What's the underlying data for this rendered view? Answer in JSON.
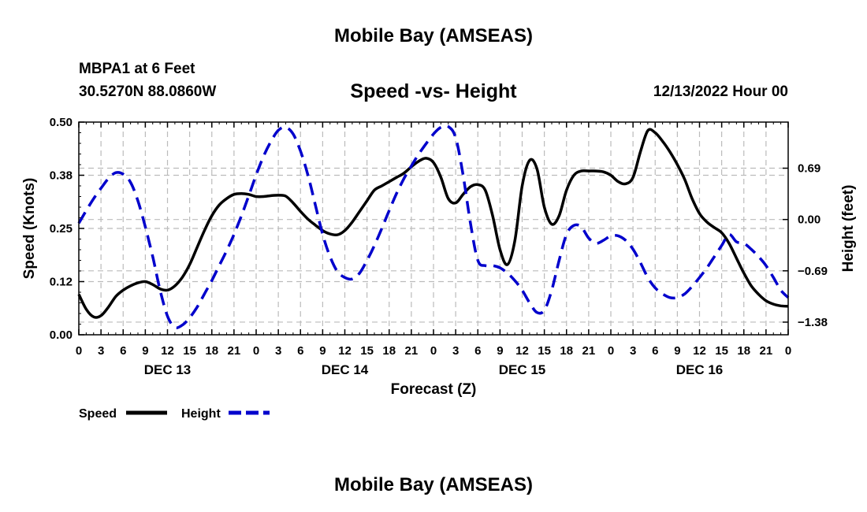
{
  "header": {
    "title": "Mobile Bay (AMSEAS)",
    "station": "MBPA1 at 6 Feet",
    "coords": "30.5270N  88.0860W",
    "subtitle": "Speed -vs- Height",
    "date": "12/13/2022 Hour 00"
  },
  "footer": {
    "title": "Mobile Bay (AMSEAS)"
  },
  "colors": {
    "speed": "#000000",
    "height": "#0000cc",
    "grid": "#bbbbbb"
  },
  "chart_data": {
    "type": "line",
    "xlabel": "Forecast (Z)",
    "ylabel": "Speed (Knots)",
    "y2label": "Height (feet)",
    "grid": true,
    "legend_position": "bottom-left",
    "xlim": [
      0,
      96
    ],
    "ylim": [
      0,
      0.5
    ],
    "y2lim": [
      -1.55,
      1.31
    ],
    "x_tick_labels": [
      "0",
      "3",
      "6",
      "9",
      "12",
      "15",
      "18",
      "21",
      "0",
      "3",
      "6",
      "9",
      "12",
      "15",
      "18",
      "21",
      "0",
      "3",
      "6",
      "9",
      "12",
      "15",
      "18",
      "21",
      "0",
      "3",
      "6",
      "9",
      "12",
      "15",
      "18",
      "21",
      "0"
    ],
    "y_ticks": [
      0,
      0.125,
      0.25,
      0.375,
      0.5
    ],
    "y_tick_labels": [
      "0.00",
      "0.12",
      "0.25",
      "0.38",
      "0.50"
    ],
    "y2_ticks": [
      -1.38,
      -0.69,
      0,
      0.69
    ],
    "y2_tick_labels": [
      "−1.38",
      "−0.69",
      "0.00",
      "0.69"
    ],
    "day_labels": [
      {
        "label": "DEC 13",
        "x": 12
      },
      {
        "label": "DEC 14",
        "x": 36
      },
      {
        "label": "DEC 15",
        "x": 60
      },
      {
        "label": "DEC 16",
        "x": 84
      }
    ],
    "series": [
      {
        "name": "Speed",
        "axis": "left",
        "style": "solid",
        "x": [
          0,
          1,
          2,
          3,
          4,
          5,
          6,
          7,
          8,
          9,
          10,
          11,
          12,
          13,
          14,
          15,
          16,
          17,
          18,
          19,
          20,
          21,
          22,
          23,
          24,
          25,
          26,
          27,
          28,
          29,
          30,
          31,
          32,
          33,
          34,
          35,
          36,
          37,
          38,
          39,
          40,
          41,
          42,
          43,
          44,
          45,
          46,
          47,
          48,
          49,
          50,
          51,
          52,
          53,
          54,
          55,
          56,
          57,
          58,
          59,
          60,
          61,
          62,
          63,
          64,
          65,
          66,
          67,
          68,
          69,
          70,
          71,
          72,
          73,
          74,
          75,
          76,
          77,
          78,
          79,
          80,
          81,
          82,
          83,
          84,
          85,
          86,
          87,
          88,
          89,
          90,
          91,
          92,
          93,
          94,
          95,
          96
        ],
        "values": [
          0.095,
          0.06,
          0.042,
          0.045,
          0.065,
          0.09,
          0.105,
          0.115,
          0.122,
          0.125,
          0.118,
          0.108,
          0.105,
          0.115,
          0.135,
          0.165,
          0.205,
          0.245,
          0.28,
          0.305,
          0.32,
          0.33,
          0.332,
          0.33,
          0.325,
          0.325,
          0.327,
          0.328,
          0.326,
          0.31,
          0.29,
          0.272,
          0.258,
          0.245,
          0.237,
          0.235,
          0.245,
          0.265,
          0.29,
          0.315,
          0.34,
          0.35,
          0.36,
          0.37,
          0.38,
          0.395,
          0.408,
          0.415,
          0.405,
          0.37,
          0.32,
          0.31,
          0.33,
          0.348,
          0.353,
          0.34,
          0.28,
          0.2,
          0.165,
          0.22,
          0.35,
          0.41,
          0.39,
          0.3,
          0.26,
          0.28,
          0.34,
          0.375,
          0.385,
          0.385,
          0.385,
          0.383,
          0.375,
          0.36,
          0.355,
          0.37,
          0.43,
          0.48,
          0.475,
          0.455,
          0.43,
          0.4,
          0.365,
          0.32,
          0.285,
          0.265,
          0.252,
          0.24,
          0.215,
          0.18,
          0.145,
          0.115,
          0.095,
          0.08,
          0.072,
          0.068,
          0.067
        ]
      },
      {
        "name": "Height",
        "axis": "right",
        "style": "dashed",
        "x": [
          0,
          1,
          2,
          3,
          4,
          5,
          6,
          7,
          8,
          9,
          10,
          11,
          12,
          13,
          14,
          15,
          16,
          17,
          18,
          19,
          20,
          21,
          22,
          23,
          24,
          25,
          26,
          27,
          28,
          29,
          30,
          31,
          32,
          33,
          34,
          35,
          36,
          37,
          38,
          39,
          40,
          41,
          42,
          43,
          44,
          45,
          46,
          47,
          48,
          49,
          50,
          51,
          52,
          53,
          54,
          55,
          56,
          57,
          58,
          59,
          60,
          61,
          62,
          63,
          64,
          65,
          66,
          67,
          68,
          69,
          70,
          71,
          72,
          73,
          74,
          75,
          76,
          77,
          78,
          79,
          80,
          81,
          82,
          83,
          84,
          85,
          86,
          87,
          88,
          89,
          90,
          91,
          92,
          93,
          94,
          95,
          96
        ],
        "values": [
          -0.05,
          0.12,
          0.28,
          0.42,
          0.55,
          0.63,
          0.61,
          0.5,
          0.25,
          -0.1,
          -0.5,
          -0.95,
          -1.3,
          -1.45,
          -1.42,
          -1.32,
          -1.18,
          -1.0,
          -0.82,
          -0.62,
          -0.42,
          -0.2,
          0.05,
          0.32,
          0.6,
          0.85,
          1.05,
          1.2,
          1.24,
          1.15,
          0.92,
          0.6,
          0.2,
          -0.2,
          -0.5,
          -0.7,
          -0.78,
          -0.8,
          -0.72,
          -0.55,
          -0.35,
          -0.12,
          0.12,
          0.35,
          0.55,
          0.72,
          0.88,
          1.02,
          1.15,
          1.24,
          1.25,
          1.1,
          0.6,
          -0.05,
          -0.55,
          -0.62,
          -0.62,
          -0.65,
          -0.72,
          -0.82,
          -0.95,
          -1.12,
          -1.25,
          -1.22,
          -0.95,
          -0.55,
          -0.2,
          -0.08,
          -0.1,
          -0.25,
          -0.32,
          -0.28,
          -0.22,
          -0.22,
          -0.28,
          -0.4,
          -0.58,
          -0.78,
          -0.92,
          -1.0,
          -1.05,
          -1.05,
          -1.0,
          -0.9,
          -0.78,
          -0.65,
          -0.5,
          -0.35,
          -0.2,
          -0.3,
          -0.32,
          -0.4,
          -0.5,
          -0.62,
          -0.78,
          -0.95,
          -1.05
        ]
      }
    ]
  }
}
